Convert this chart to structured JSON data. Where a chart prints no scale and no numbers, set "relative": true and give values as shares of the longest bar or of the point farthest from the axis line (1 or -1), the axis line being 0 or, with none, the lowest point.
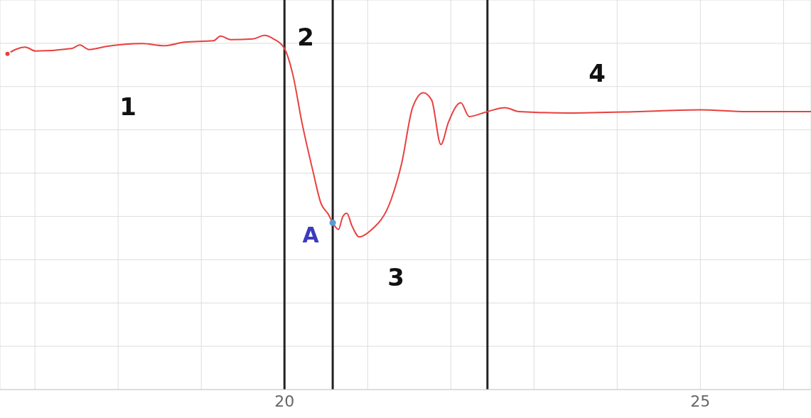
{
  "chart_data": {
    "type": "line",
    "relative": true,
    "xlim": [
      16.58,
      26.33
    ],
    "xticks": [
      {
        "value": 17,
        "label": null
      },
      {
        "value": 18,
        "label": null
      },
      {
        "value": 19,
        "label": null
      },
      20,
      {
        "value": 21,
        "label": null
      },
      {
        "value": 22,
        "label": null
      },
      {
        "value": 23,
        "label": null
      },
      {
        "value": 24,
        "label": null
      },
      25,
      {
        "value": 26,
        "label": null
      }
    ],
    "grid": true,
    "series": [
      {
        "color": "#e8403f",
        "x": [
          16.67,
          16.88,
          17.01,
          17.44,
          17.54,
          17.65,
          17.86,
          18.29,
          18.55,
          18.8,
          19.15,
          19.23,
          19.36,
          19.62,
          19.76,
          19.87,
          20.0,
          20.1,
          20.21,
          20.34,
          20.44,
          20.53,
          20.58,
          20.65,
          20.7,
          20.75,
          20.81,
          20.9,
          21.03,
          21.28,
          21.41,
          21.54,
          21.67,
          21.77,
          21.88,
          21.97,
          22.12,
          22.22,
          22.44,
          22.65,
          22.82,
          23.42,
          24.27,
          25.0,
          25.56,
          26.33
        ],
        "values": [
          0.948,
          0.967,
          0.956,
          0.963,
          0.973,
          0.96,
          0.969,
          0.977,
          0.971,
          0.981,
          0.985,
          0.998,
          0.988,
          0.99,
          1.0,
          0.99,
          0.963,
          0.89,
          0.754,
          0.619,
          0.525,
          0.494,
          0.471,
          0.452,
          0.488,
          0.498,
          0.463,
          0.431,
          0.448,
          0.535,
          0.64,
          0.796,
          0.838,
          0.817,
          0.692,
          0.754,
          0.81,
          0.771,
          0.785,
          0.796,
          0.785,
          0.781,
          0.785,
          0.79,
          0.785,
          0.785
        ]
      },
      {
        "type": "scatter",
        "color": "#5b9bd5",
        "x": [
          20.58
        ],
        "values": [
          0.471
        ]
      }
    ],
    "ref_lines": [
      {
        "axis": "x",
        "value": 20,
        "color": "#222222"
      },
      {
        "axis": "x",
        "value": 20.58,
        "color": "#222222"
      },
      {
        "axis": "x",
        "value": 22.44,
        "color": "#222222"
      }
    ],
    "annotations": [
      "1",
      "2",
      {
        "text": "A",
        "x": 20.58,
        "y": 0.471
      },
      "3",
      "4"
    ]
  }
}
